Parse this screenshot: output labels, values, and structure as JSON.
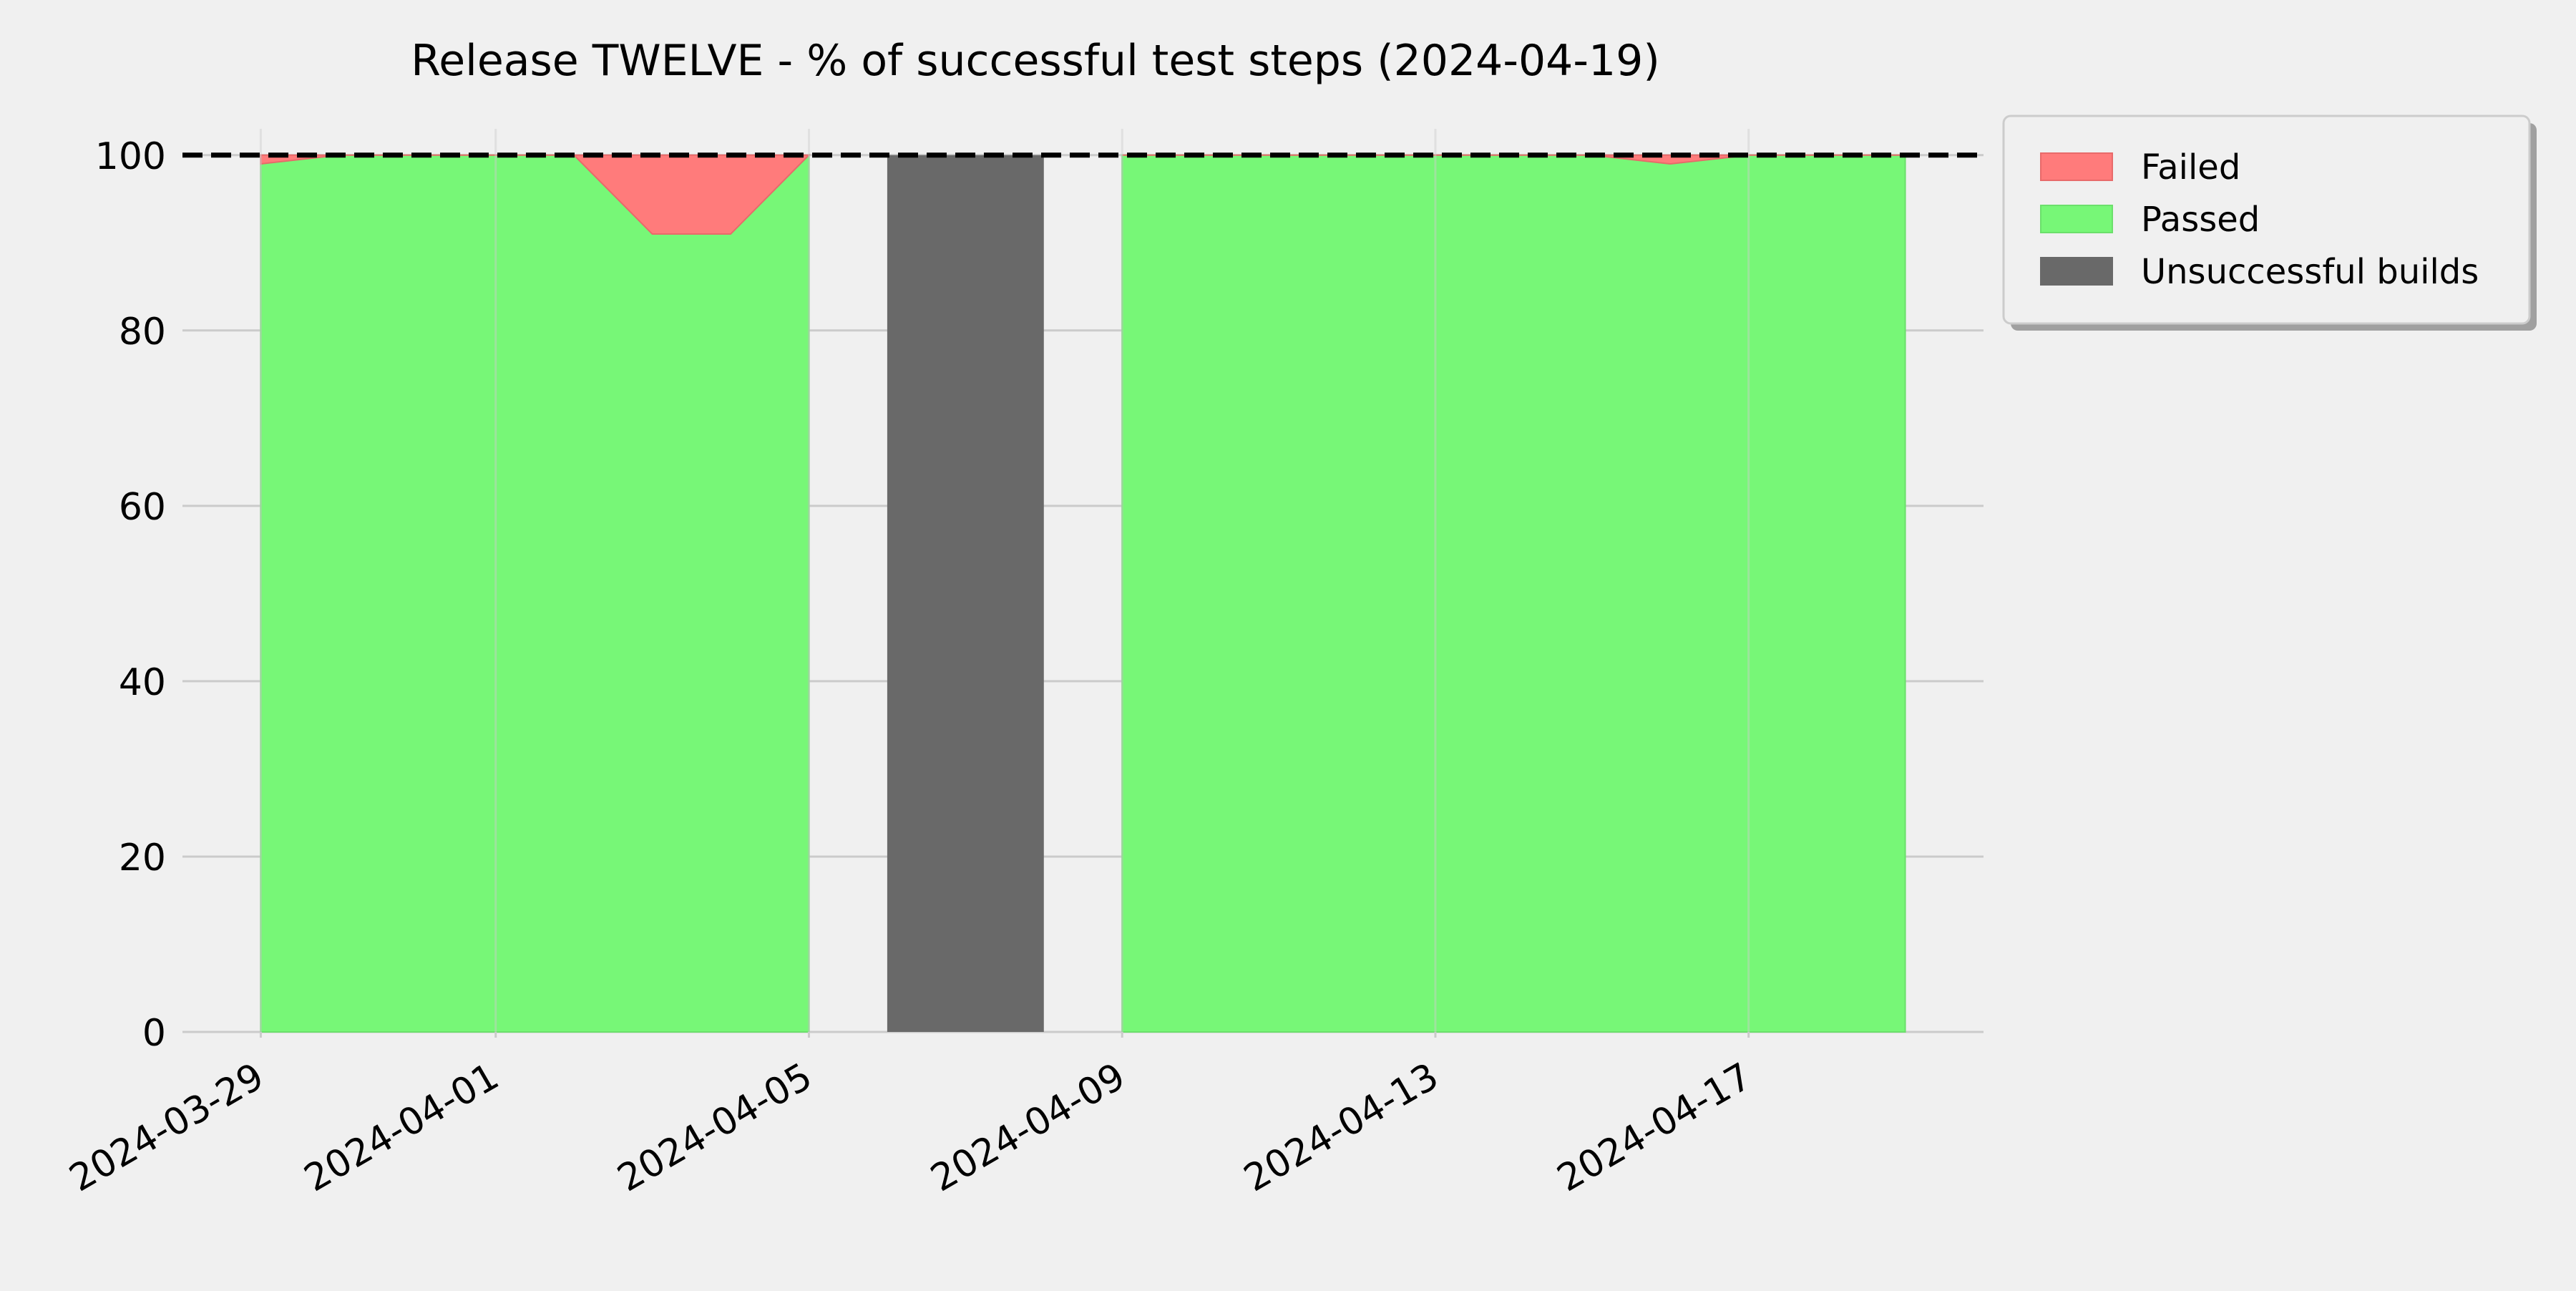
{
  "chart_data": {
    "type": "area",
    "title": "Release TWELVE - % of successful test steps (2024-04-19)",
    "xlabel": "",
    "ylabel": "",
    "x_ticks": [
      "2024-03-29",
      "2024-04-01",
      "2024-04-05",
      "2024-04-09",
      "2024-04-13",
      "2024-04-17"
    ],
    "y_ticks": [
      0,
      20,
      40,
      60,
      80,
      100
    ],
    "xlim": [
      "2024-03-28",
      "2024-04-20"
    ],
    "ylim": [
      0,
      103
    ],
    "reference_line": {
      "y": 100,
      "style": "dashed",
      "color": "#000000"
    },
    "grid": true,
    "legend_position": "outside-top-right",
    "x": [
      "2024-03-29",
      "2024-03-30",
      "2024-03-31",
      "2024-04-01",
      "2024-04-02",
      "2024-04-03",
      "2024-04-04",
      "2024-04-05",
      "2024-04-06",
      "2024-04-08",
      "2024-04-09",
      "2024-04-10",
      "2024-04-11",
      "2024-04-12",
      "2024-04-13",
      "2024-04-14",
      "2024-04-15",
      "2024-04-16",
      "2024-04-17",
      "2024-04-18",
      "2024-04-19"
    ],
    "series": [
      {
        "name": "Failed",
        "color": "#ff7b7b",
        "values": [
          1,
          0,
          0,
          0,
          0,
          9,
          9,
          0,
          null,
          null,
          0,
          0,
          0,
          0,
          0,
          0,
          0,
          1,
          0,
          0,
          0
        ]
      },
      {
        "name": "Passed",
        "color": "#77f777",
        "values": [
          99,
          100,
          100,
          100,
          100,
          91,
          91,
          100,
          null,
          null,
          100,
          100,
          100,
          100,
          100,
          100,
          100,
          99,
          100,
          100,
          100
        ]
      },
      {
        "name": "Unsuccessful builds",
        "color": "#696969",
        "spans": [
          {
            "from": "2024-04-06",
            "to": "2024-04-08"
          }
        ]
      }
    ],
    "legend": [
      "Failed",
      "Passed",
      "Unsuccessful builds"
    ]
  }
}
